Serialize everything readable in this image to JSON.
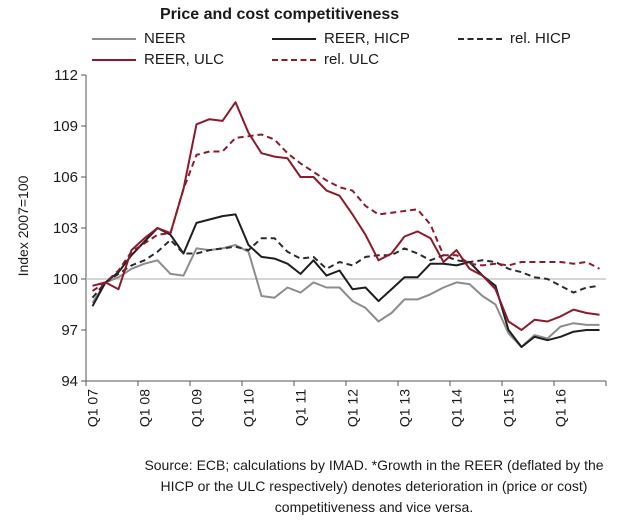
{
  "chart_data": {
    "type": "line",
    "title": "Price and cost competitiveness",
    "ylabel": "Index 2007=100",
    "ylim": [
      94,
      112
    ],
    "yticks": [
      94,
      97,
      100,
      103,
      106,
      109,
      112
    ],
    "reference_line": 100,
    "legend_position": "top",
    "x_tick_labels": [
      "Q1 07",
      "Q1 08",
      "Q1 09",
      "Q1 10",
      "Q1 11",
      "Q1 12",
      "Q1 13",
      "Q1 14",
      "Q1 15",
      "Q1 16"
    ],
    "x_start": "Q1 07",
    "n_points": 40,
    "series": [
      {
        "name": "NEER",
        "color": "#8c8c8c",
        "style": "solid",
        "values": [
          98.6,
          99.8,
          100.1,
          100.6,
          100.9,
          101.1,
          100.3,
          100.2,
          101.8,
          101.7,
          101.8,
          102.0,
          101.6,
          99.0,
          98.9,
          99.5,
          99.2,
          99.8,
          99.5,
          99.5,
          98.7,
          98.3,
          97.5,
          98.0,
          98.8,
          98.8,
          99.1,
          99.5,
          99.8,
          99.7,
          99.0,
          98.5,
          96.8,
          96.0,
          96.7,
          96.5,
          97.2,
          97.4,
          97.3,
          97.3
        ]
      },
      {
        "name": "REER, HICP",
        "color": "#1e1e1e",
        "style": "solid",
        "values": [
          98.4,
          99.8,
          100.4,
          101.4,
          102.2,
          103.0,
          102.6,
          101.5,
          103.3,
          103.5,
          103.7,
          103.8,
          102.0,
          101.3,
          101.2,
          100.9,
          100.3,
          101.1,
          100.2,
          100.5,
          99.4,
          99.5,
          98.7,
          99.4,
          100.1,
          100.1,
          100.9,
          100.9,
          100.8,
          101.0,
          100.2,
          99.6,
          97.0,
          96.0,
          96.6,
          96.4,
          96.6,
          96.9,
          97.0,
          97.0
        ]
      },
      {
        "name": "rel. HICP",
        "color": "#2b2b2b",
        "style": "dashed",
        "values": [
          98.9,
          99.8,
          100.3,
          100.8,
          101.1,
          101.6,
          102.3,
          101.5,
          101.5,
          101.7,
          101.8,
          101.9,
          101.7,
          102.4,
          102.4,
          101.6,
          101.2,
          101.3,
          100.6,
          101.0,
          100.8,
          101.3,
          101.4,
          101.4,
          101.8,
          101.5,
          101.1,
          101.4,
          101.1,
          101.0,
          101.1,
          101.0,
          100.6,
          100.4,
          100.1,
          100.0,
          99.6,
          99.2,
          99.5,
          99.6
        ]
      },
      {
        "name": "REER, ULC",
        "color": "#8c1a2a",
        "style": "solid",
        "values": [
          99.6,
          99.8,
          99.4,
          101.7,
          102.4,
          103.0,
          102.7,
          105.3,
          109.1,
          109.4,
          109.3,
          110.4,
          108.6,
          107.4,
          107.2,
          107.1,
          106.0,
          106.0,
          105.2,
          104.9,
          103.8,
          102.6,
          101.1,
          101.5,
          102.5,
          102.8,
          102.4,
          101.0,
          101.7,
          100.6,
          100.2,
          99.4,
          97.5,
          97.0,
          97.6,
          97.5,
          97.8,
          98.2,
          98.0,
          97.9
        ]
      },
      {
        "name": "rel. ULC",
        "color": "#8c1a2a",
        "style": "dashed",
        "values": [
          99.3,
          99.8,
          100.5,
          101.6,
          102.1,
          102.6,
          102.7,
          105.3,
          107.3,
          107.5,
          107.5,
          108.3,
          108.4,
          108.5,
          108.2,
          107.4,
          106.8,
          106.3,
          105.8,
          105.4,
          105.2,
          104.3,
          103.8,
          103.9,
          104.0,
          104.1,
          103.2,
          101.4,
          101.4,
          100.9,
          100.8,
          100.9,
          100.8,
          101.0,
          101.0,
          101.0,
          101.0,
          100.9,
          101.0,
          100.6
        ]
      }
    ],
    "source": "Source: ECB; calculations by IMAD. *Growth in the REER (deflated by the HICP or the ULC respectively) denotes deterioration in (price or cost) competitiveness and vice versa."
  }
}
